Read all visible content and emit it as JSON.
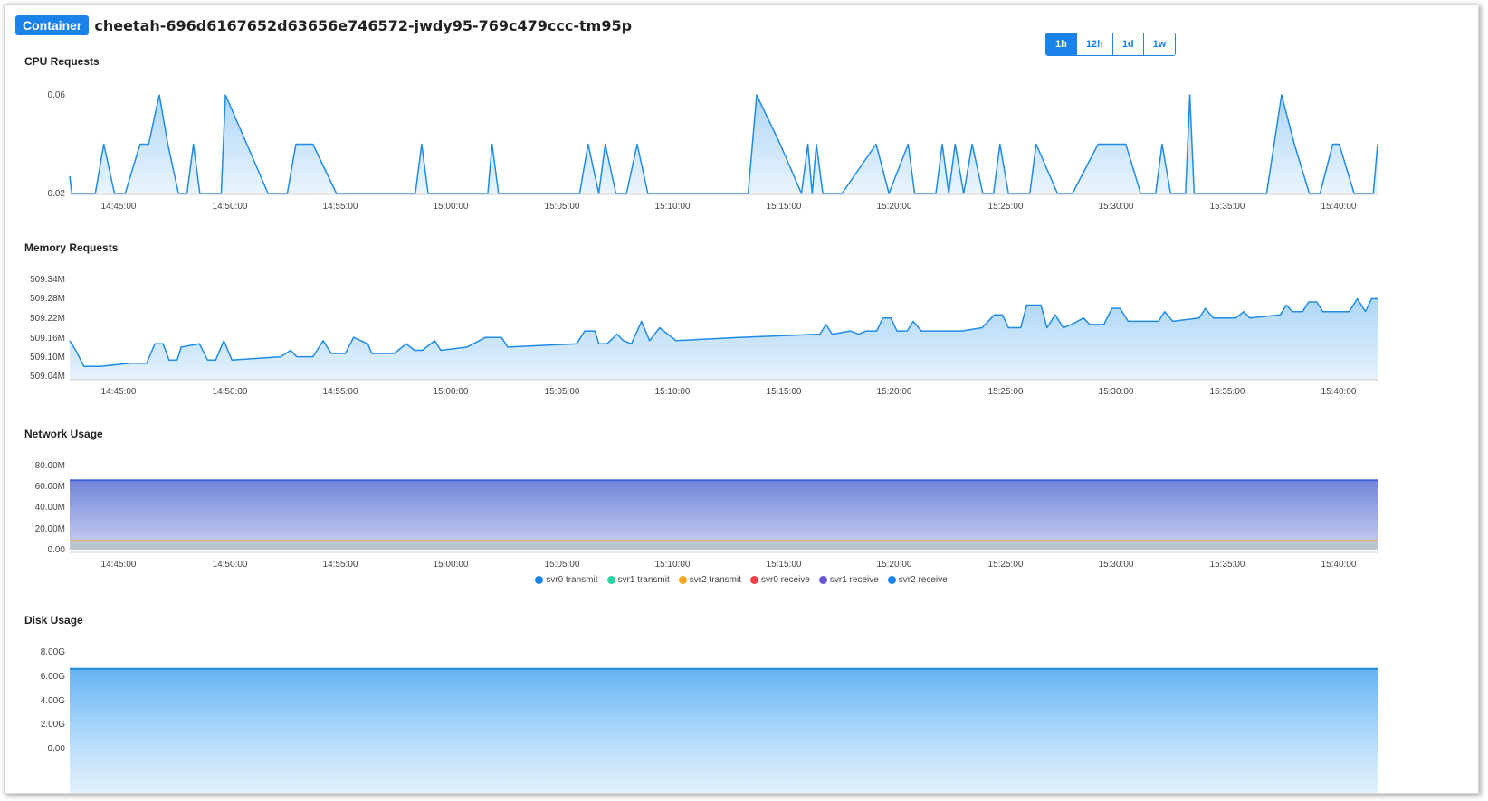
{
  "header": {
    "badge": "Container",
    "title": "cheetah-696d6167652d63656e746572-jwdy95-769c479ccc-tm95p"
  },
  "range_buttons": [
    {
      "label": "1h",
      "active": true
    },
    {
      "label": "12h",
      "active": false
    },
    {
      "label": "1d",
      "active": false
    },
    {
      "label": "1w",
      "active": false
    }
  ],
  "x_ticks": [
    "14:45:00",
    "14:50:00",
    "14:55:00",
    "15:00:00",
    "15:05:00",
    "15:10:00",
    "15:15:00",
    "15:20:00",
    "15:25:00",
    "15:30:00",
    "15:35:00",
    "15:40:00"
  ],
  "colors": {
    "accent": "#1a82e8",
    "line": "#1e8ce6",
    "fill": "#a9d4f7",
    "network_fill": "#6b7fd8",
    "network_line": "#3a66d6"
  },
  "chart_data": [
    {
      "title": "CPU Requests",
      "type": "area",
      "y_ticks": [
        "0.06",
        "0.02"
      ],
      "ylim": [
        0.02,
        0.06
      ],
      "x_range_minutes": [
        43,
        102.2
      ],
      "series": [
        {
          "points": [
            [
              43,
              0.027
            ],
            [
              43.1,
              0.02
            ],
            [
              44.2,
              0.02
            ],
            [
              44.6,
              0.04
            ],
            [
              45.1,
              0.02
            ],
            [
              45.6,
              0.02
            ],
            [
              46.3,
              0.04
            ],
            [
              46.7,
              0.04
            ],
            [
              47.2,
              0.06
            ],
            [
              47.6,
              0.04
            ],
            [
              48.1,
              0.02
            ],
            [
              48.5,
              0.02
            ],
            [
              48.8,
              0.04
            ],
            [
              49.1,
              0.02
            ],
            [
              50.1,
              0.02
            ],
            [
              50.3,
              0.06
            ],
            [
              51.3,
              0.04
            ],
            [
              52.3,
              0.02
            ],
            [
              53.2,
              0.02
            ],
            [
              53.6,
              0.04
            ],
            [
              54.4,
              0.04
            ],
            [
              55.5,
              0.02
            ],
            [
              59.2,
              0.02
            ],
            [
              59.5,
              0.04
            ],
            [
              59.8,
              0.02
            ],
            [
              62.6,
              0.02
            ],
            [
              62.8,
              0.04
            ],
            [
              63.1,
              0.02
            ],
            [
              66.9,
              0.02
            ],
            [
              67.3,
              0.04
            ],
            [
              67.8,
              0.02
            ],
            [
              68.1,
              0.04
            ],
            [
              68.6,
              0.02
            ],
            [
              69.1,
              0.02
            ],
            [
              69.6,
              0.04
            ],
            [
              70.1,
              0.02
            ],
            [
              74.8,
              0.02
            ],
            [
              75.2,
              0.06
            ],
            [
              76.3,
              0.04
            ],
            [
              77.3,
              0.02
            ],
            [
              77.6,
              0.04
            ],
            [
              77.8,
              0.02
            ],
            [
              78,
              0.04
            ],
            [
              78.3,
              0.02
            ],
            [
              79.2,
              0.02
            ],
            [
              80.8,
              0.04
            ],
            [
              81.4,
              0.02
            ],
            [
              82.3,
              0.04
            ],
            [
              82.6,
              0.02
            ],
            [
              83.6,
              0.02
            ],
            [
              83.9,
              0.04
            ],
            [
              84.2,
              0.02
            ],
            [
              84.5,
              0.04
            ],
            [
              84.9,
              0.02
            ],
            [
              85.3,
              0.04
            ],
            [
              85.8,
              0.02
            ],
            [
              86.3,
              0.02
            ],
            [
              86.6,
              0.04
            ],
            [
              87.0,
              0.02
            ],
            [
              88.0,
              0.02
            ],
            [
              88.3,
              0.04
            ],
            [
              89.3,
              0.02
            ],
            [
              90.0,
              0.02
            ],
            [
              91.2,
              0.04
            ],
            [
              92.5,
              0.04
            ],
            [
              93.2,
              0.02
            ],
            [
              93.9,
              0.02
            ],
            [
              94.2,
              0.04
            ],
            [
              94.6,
              0.02
            ],
            [
              95.3,
              0.02
            ],
            [
              95.5,
              0.06
            ],
            [
              95.7,
              0.02
            ],
            [
              99.1,
              0.02
            ],
            [
              99.8,
              0.06
            ],
            [
              100.4,
              0.04
            ],
            [
              101.1,
              0.02
            ],
            [
              101.6,
              0.02
            ],
            [
              102.2,
              0.04
            ],
            [
              102.5,
              0.04
            ],
            [
              103.2,
              0.02
            ],
            [
              104.1,
              0.02
            ],
            [
              104.3,
              0.04
            ]
          ]
        }
      ]
    },
    {
      "title": "Memory Requests",
      "type": "area",
      "y_ticks": [
        "509.34M",
        "509.28M",
        "509.22M",
        "509.16M",
        "509.10M",
        "509.04M"
      ],
      "ylim": [
        509.04,
        509.34
      ],
      "series": [
        {
          "points": [
            [
              43,
              509.15
            ],
            [
              43.3,
              509.12
            ],
            [
              43.7,
              509.07
            ],
            [
              44.5,
              509.07
            ],
            [
              46.0,
              509.08
            ],
            [
              46.8,
              509.08
            ],
            [
              47.2,
              509.14
            ],
            [
              47.6,
              509.14
            ],
            [
              47.9,
              509.09
            ],
            [
              48.3,
              509.09
            ],
            [
              48.5,
              509.13
            ],
            [
              49.4,
              509.14
            ],
            [
              49.8,
              509.09
            ],
            [
              50.2,
              509.09
            ],
            [
              50.6,
              509.15
            ],
            [
              51.0,
              509.09
            ],
            [
              53.4,
              509.1
            ],
            [
              53.9,
              509.12
            ],
            [
              54.2,
              509.1
            ],
            [
              55.0,
              509.1
            ],
            [
              55.5,
              509.15
            ],
            [
              55.9,
              509.11
            ],
            [
              56.6,
              509.11
            ],
            [
              57.0,
              509.16
            ],
            [
              57.7,
              509.14
            ],
            [
              57.9,
              509.11
            ],
            [
              59.0,
              509.11
            ],
            [
              59.6,
              509.14
            ],
            [
              60.0,
              509.12
            ],
            [
              60.4,
              509.12
            ],
            [
              61.0,
              509.15
            ],
            [
              61.3,
              509.12
            ],
            [
              62.6,
              509.13
            ],
            [
              63.5,
              509.16
            ],
            [
              64.3,
              509.16
            ],
            [
              64.6,
              509.13
            ],
            [
              68.0,
              509.14
            ],
            [
              68.4,
              509.18
            ],
            [
              68.9,
              509.18
            ],
            [
              69.1,
              509.14
            ],
            [
              69.5,
              509.14
            ],
            [
              70.0,
              509.17
            ],
            [
              70.3,
              509.15
            ],
            [
              70.7,
              509.14
            ],
            [
              71.2,
              509.21
            ],
            [
              71.6,
              509.15
            ],
            [
              72.1,
              509.19
            ],
            [
              72.9,
              509.15
            ],
            [
              76.0,
              509.16
            ],
            [
              80.0,
              509.17
            ],
            [
              80.3,
              509.2
            ],
            [
              80.6,
              509.17
            ],
            [
              81.5,
              509.18
            ],
            [
              81.9,
              509.17
            ],
            [
              82.3,
              509.18
            ],
            [
              82.8,
              509.18
            ],
            [
              83.1,
              509.22
            ],
            [
              83.5,
              509.22
            ],
            [
              83.8,
              509.18
            ],
            [
              84.3,
              509.18
            ],
            [
              84.6,
              509.21
            ],
            [
              85.0,
              509.18
            ],
            [
              87.0,
              509.18
            ],
            [
              88.0,
              509.19
            ],
            [
              88.6,
              509.23
            ],
            [
              89.0,
              509.23
            ],
            [
              89.3,
              509.19
            ],
            [
              89.9,
              509.19
            ],
            [
              90.2,
              509.26
            ],
            [
              90.9,
              509.26
            ],
            [
              91.2,
              509.19
            ],
            [
              91.6,
              509.23
            ],
            [
              92.0,
              509.19
            ],
            [
              92.4,
              509.2
            ],
            [
              93.0,
              509.22
            ],
            [
              93.3,
              509.2
            ],
            [
              94.0,
              509.2
            ],
            [
              94.4,
              509.25
            ],
            [
              94.8,
              509.25
            ],
            [
              95.2,
              509.21
            ],
            [
              96.7,
              509.21
            ],
            [
              97.0,
              509.24
            ],
            [
              97.4,
              509.21
            ],
            [
              98.7,
              509.22
            ],
            [
              99.0,
              509.25
            ],
            [
              99.4,
              509.22
            ],
            [
              100.5,
              509.22
            ],
            [
              100.9,
              509.24
            ],
            [
              101.2,
              509.22
            ],
            [
              102.7,
              509.23
            ],
            [
              103.0,
              509.26
            ],
            [
              103.3,
              509.24
            ],
            [
              103.8,
              509.24
            ],
            [
              104.1,
              509.27
            ],
            [
              104.5,
              509.27
            ],
            [
              104.8,
              509.24
            ],
            [
              106.1,
              509.24
            ],
            [
              106.5,
              509.28
            ],
            [
              106.9,
              509.24
            ],
            [
              107.2,
              509.28
            ],
            [
              107.5,
              509.28
            ]
          ]
        }
      ]
    },
    {
      "title": "Network Usage",
      "type": "area",
      "y_ticks": [
        "80.00M",
        "60.00M",
        "40.00M",
        "20.00M",
        "0.00"
      ],
      "ylim": [
        0,
        80
      ],
      "series": [
        {
          "name": "svr0 transmit",
          "color": "#1a82e8",
          "value": 66
        },
        {
          "name": "svr1 transmit",
          "color": "#2ad6a0",
          "value": 9
        },
        {
          "name": "svr2 transmit",
          "color": "#f5a623",
          "value": 9
        },
        {
          "name": "svr0 receive",
          "color": "#f0404a",
          "value": 9
        },
        {
          "name": "svr1 receive",
          "color": "#6a55cf",
          "value": 9
        },
        {
          "name": "svr2 receive",
          "color": "#1a82e8",
          "value": 9
        }
      ]
    },
    {
      "title": "Disk Usage",
      "type": "area",
      "y_ticks": [
        "8.00G",
        "6.00G",
        "4.00G",
        "2.00G",
        "0.00"
      ],
      "ylim": [
        0,
        8
      ],
      "series": [
        {
          "value": 6.6
        }
      ]
    }
  ]
}
